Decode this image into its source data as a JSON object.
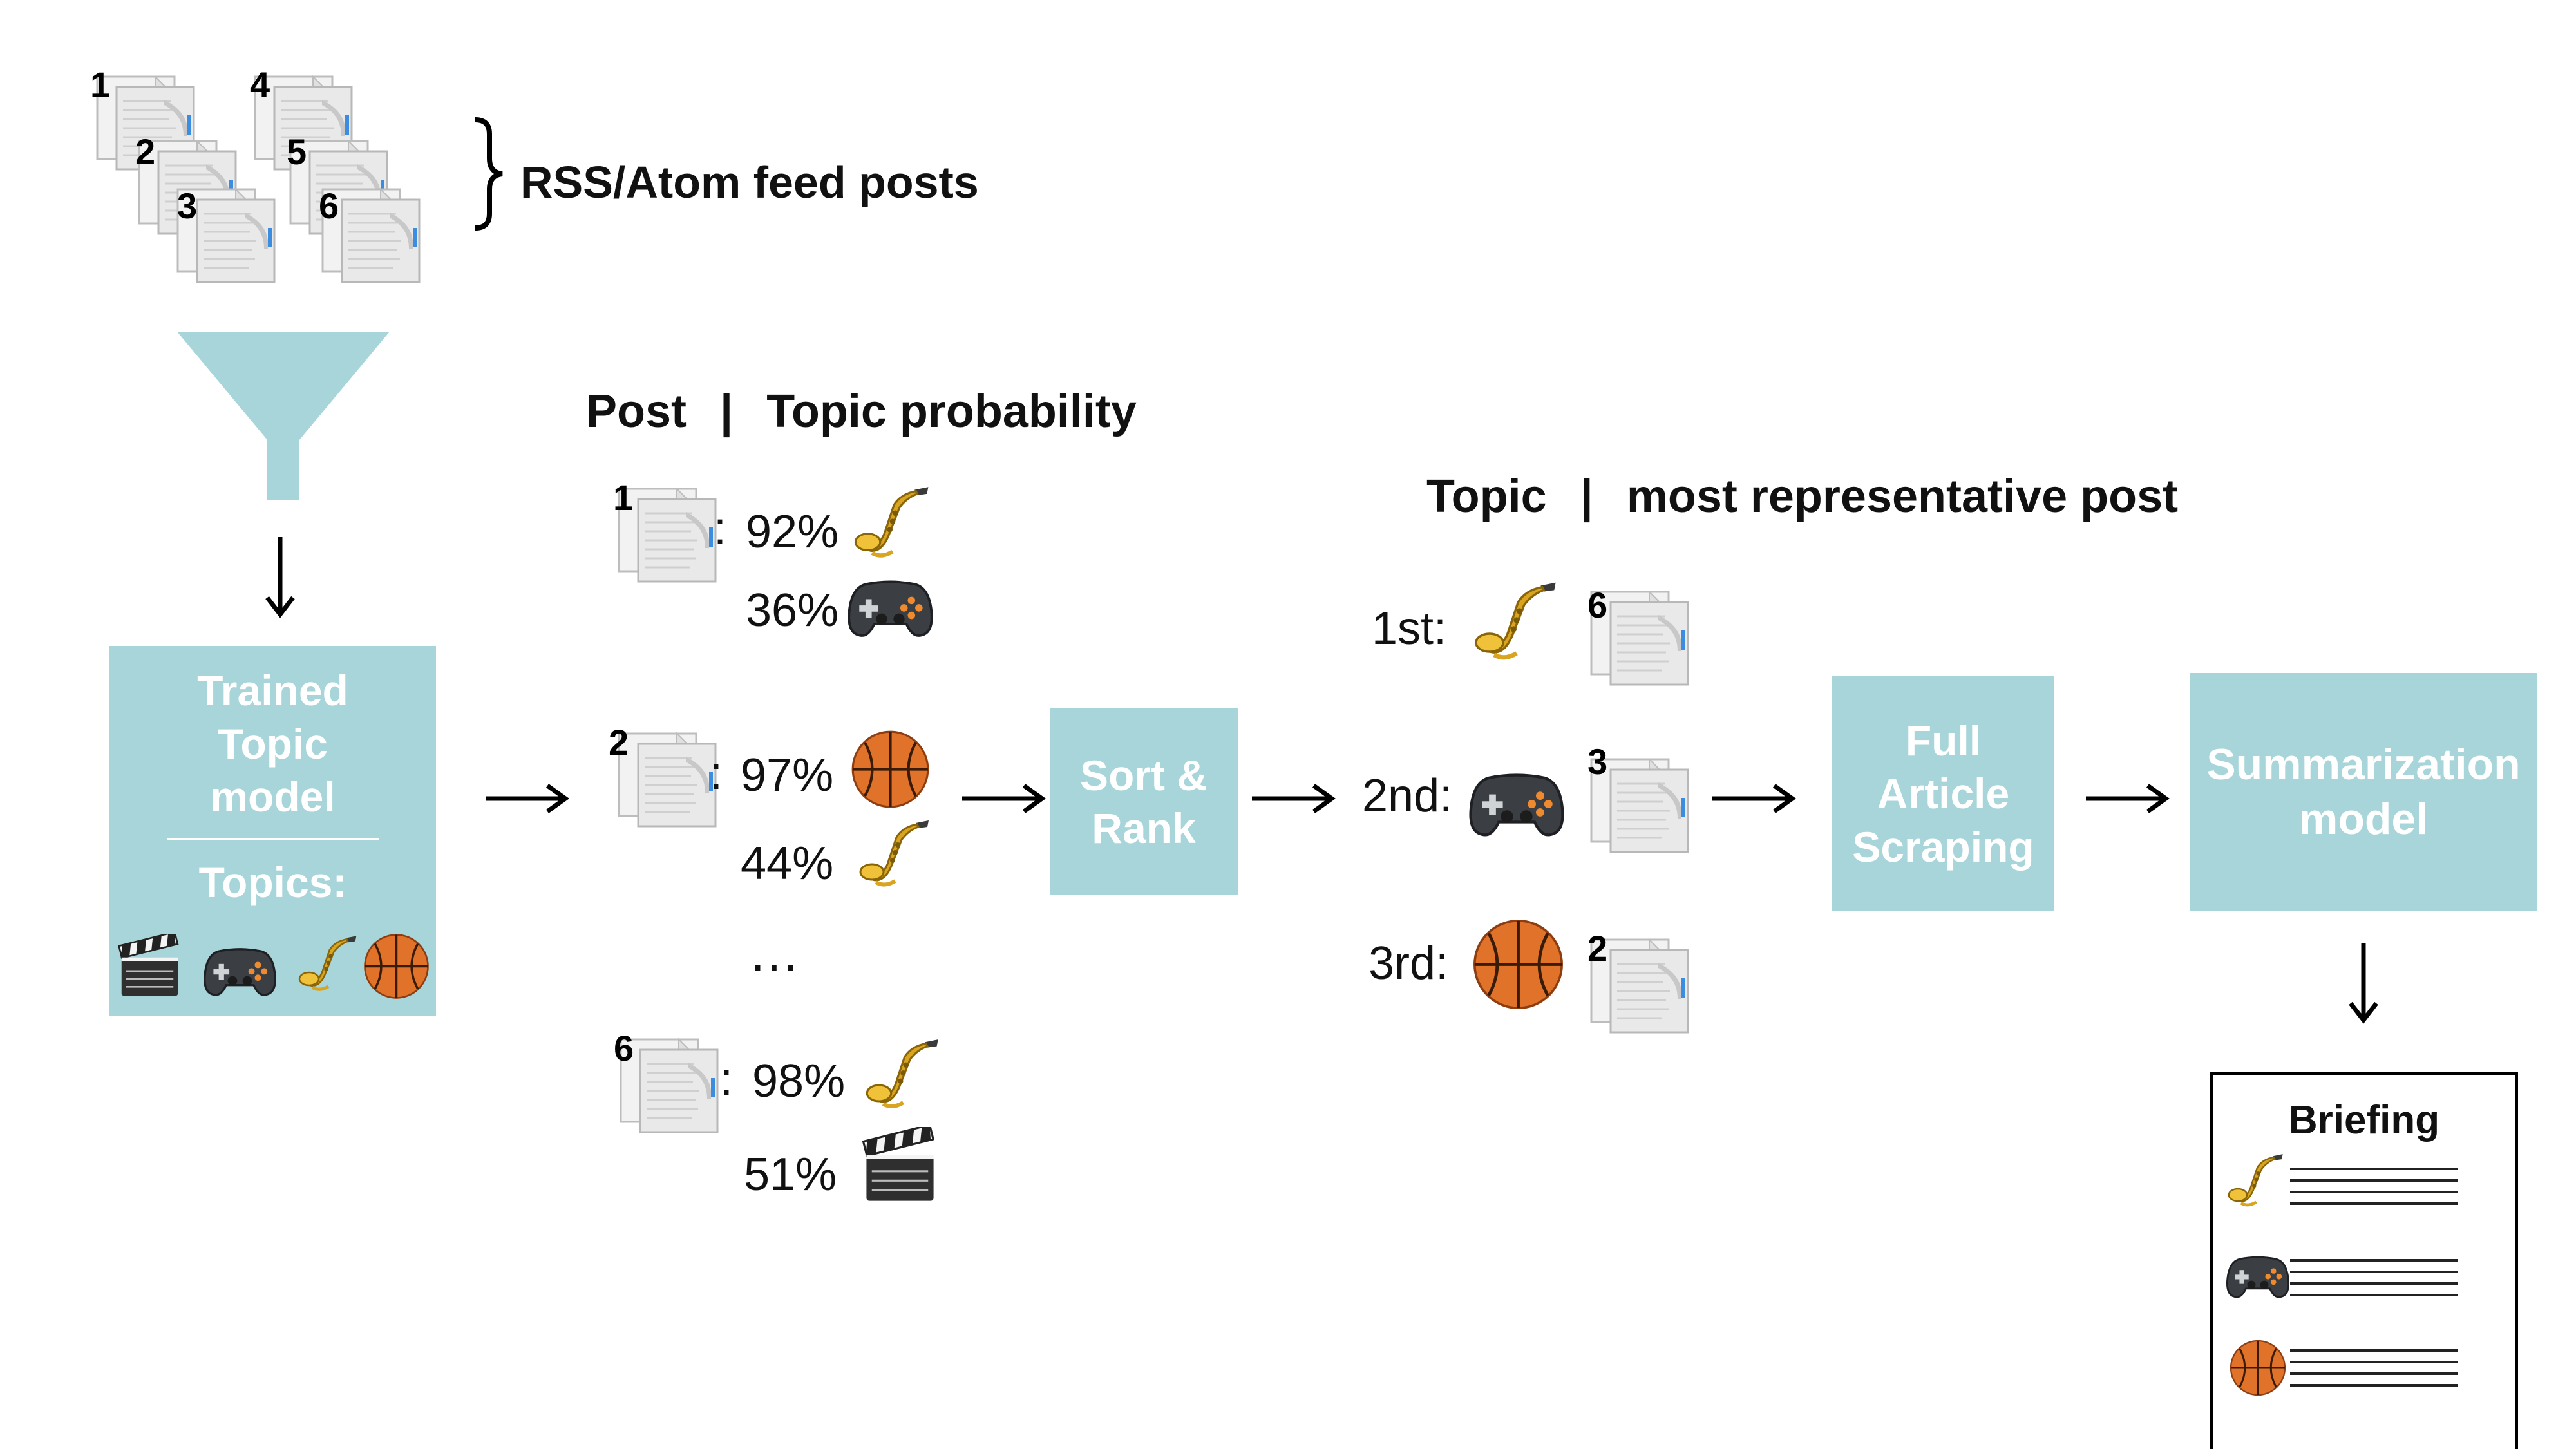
{
  "feed": {
    "doc_numbers": [
      "1",
      "2",
      "3",
      "4",
      "5",
      "6"
    ],
    "brace_label": "RSS/Atom feed posts"
  },
  "model_box": {
    "title_lines": [
      "Trained",
      "Topic",
      "model"
    ],
    "topics_label": "Topics:",
    "topic_icons": [
      "clapperboard-icon",
      "gamepad-icon",
      "saxophone-icon",
      "basketball-icon"
    ]
  },
  "post_column": {
    "header_left": "Post",
    "header_sep": "|",
    "header_right": "Topic probability",
    "colon": ":",
    "ellipsis": "…",
    "posts": [
      {
        "number": "1",
        "rows": [
          {
            "pct": "92%",
            "icon": "saxophone-icon"
          },
          {
            "pct": "36%",
            "icon": "gamepad-icon"
          }
        ]
      },
      {
        "number": "2",
        "rows": [
          {
            "pct": "97%",
            "icon": "basketball-icon"
          },
          {
            "pct": "44%",
            "icon": "saxophone-icon"
          }
        ]
      },
      {
        "number": "6",
        "rows": [
          {
            "pct": "98%",
            "icon": "saxophone-icon"
          },
          {
            "pct": "51%",
            "icon": "clapperboard-icon"
          }
        ]
      }
    ]
  },
  "sort_box": {
    "lines": [
      "Sort &",
      "Rank"
    ]
  },
  "rank_column": {
    "header_left": "Topic",
    "header_sep": "|",
    "header_right": "most representative post",
    "ranks": [
      {
        "label": "1st:",
        "icon": "saxophone-icon",
        "post": "6"
      },
      {
        "label": "2nd:",
        "icon": "gamepad-icon",
        "post": "3"
      },
      {
        "label": "3rd:",
        "icon": "basketball-icon",
        "post": "2"
      }
    ]
  },
  "scrape_box": {
    "lines": [
      "Full",
      "Article",
      "Scraping"
    ]
  },
  "summary_box": {
    "lines": [
      "Summarization",
      "model"
    ]
  },
  "briefing": {
    "title": "Briefing",
    "rows": [
      "saxophone-icon",
      "gamepad-icon",
      "basketball-icon"
    ]
  },
  "colors": {
    "accent": "#a8d5d9",
    "box_text": "#ffffff",
    "text": "#111111"
  }
}
